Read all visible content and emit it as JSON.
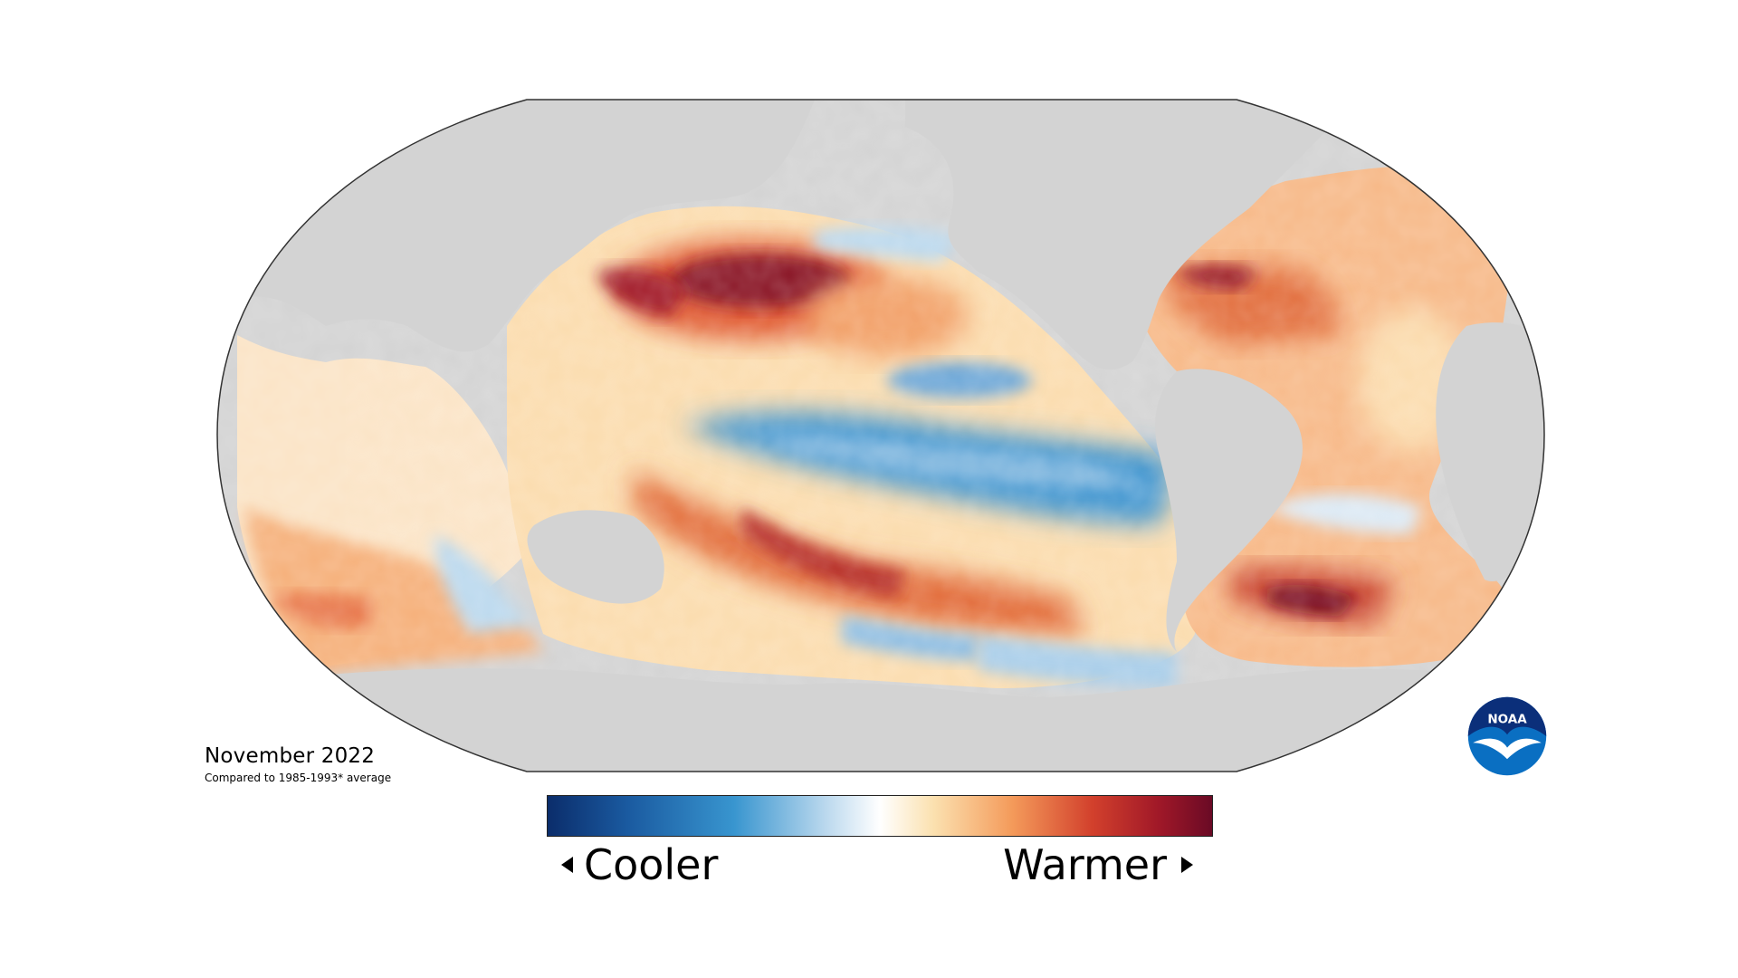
{
  "map": {
    "date": "November 2022",
    "baseline_note": "Compared to 1985-1993* average",
    "land_color": "#d3d3d3",
    "outline_color": "#333333"
  },
  "legend": {
    "left_label": "Cooler",
    "right_label": "Warmer",
    "colors": [
      "#0b2d6b",
      "#1f6fb3",
      "#4da3d6",
      "#bcd9ee",
      "#ffffff",
      "#fbe3b5",
      "#f6a45f",
      "#e0562e",
      "#b51f26",
      "#6a0a25"
    ]
  },
  "logo": {
    "text": "NOAA",
    "icon": "noaa-logo-icon",
    "primary_color": "#0a6fc2",
    "dark_color": "#0b2f7a"
  }
}
